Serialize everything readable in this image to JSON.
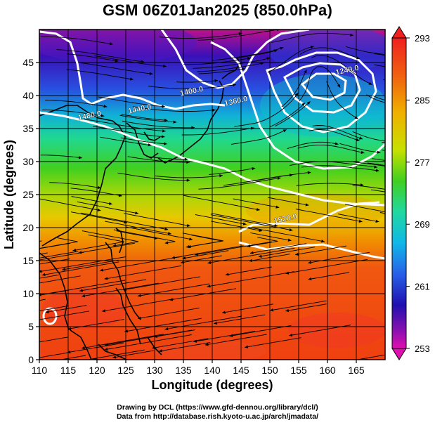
{
  "title": "GSM 06Z01Jan2025 (850.0hPa)",
  "xlabel": "Longitude (degrees)",
  "ylabel": "Latitude  (degrees)",
  "x_ticks": [
    "110",
    "115",
    "120",
    "125",
    "130",
    "135",
    "140",
    "145",
    "150",
    "155",
    "160",
    "165"
  ],
  "y_ticks": [
    "0",
    "5",
    "10",
    "15",
    "20",
    "25",
    "30",
    "35",
    "40",
    "45"
  ],
  "colorbar": {
    "labels": [
      "293",
      "285",
      "277",
      "269",
      "261",
      "253"
    ],
    "min": 253,
    "max": 293
  },
  "contours": [
    {
      "label": "1240.0"
    },
    {
      "label": "1360.0"
    },
    {
      "label": "1400.0"
    },
    {
      "label": "1440.0"
    },
    {
      "label": "1480.0"
    },
    {
      "label": "1520.0"
    }
  ],
  "footer": {
    "line1": "Drawing by DCL (https://www.gfd-dennou.org/library/dcl/)",
    "line2": "Data from http://database.rish.kyoto-u.ac.jp/arch/jmadata/"
  }
}
